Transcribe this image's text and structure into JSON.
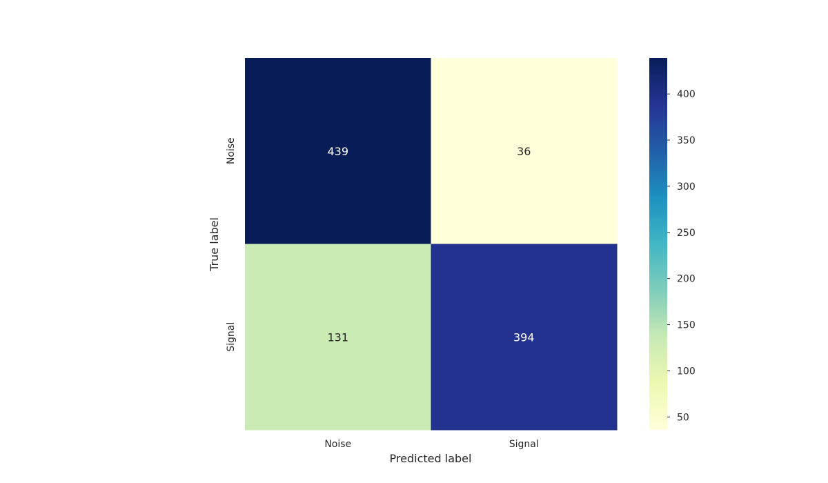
{
  "chart_data": {
    "type": "heatmap",
    "title": "",
    "xlabel": "Predicted label",
    "ylabel": "True label",
    "x_categories": [
      "Noise",
      "Signal"
    ],
    "y_categories": [
      "Noise",
      "Signal"
    ],
    "values": [
      [
        439,
        36
      ],
      [
        131,
        394
      ]
    ],
    "colormap": "YlGnBu",
    "colorbar": {
      "min": 36,
      "max": 439,
      "ticks": [
        50,
        100,
        150,
        200,
        250,
        300,
        350,
        400
      ]
    }
  },
  "colors": {
    "colormap_stops": [
      "#ffffd9",
      "#edf8b1",
      "#c7e9b4",
      "#7fcdbb",
      "#41b6c4",
      "#1d91c0",
      "#225ea8",
      "#253494",
      "#081d58"
    ]
  }
}
